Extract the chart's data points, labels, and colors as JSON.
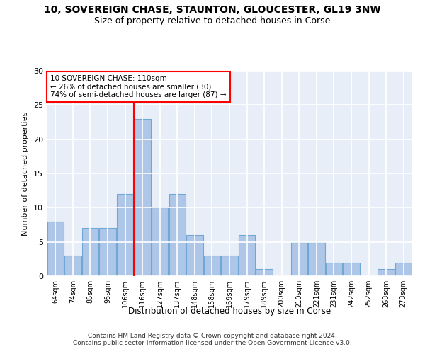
{
  "title1": "10, SOVEREIGN CHASE, STAUNTON, GLOUCESTER, GL19 3NW",
  "title2": "Size of property relative to detached houses in Corse",
  "xlabel": "Distribution of detached houses by size in Corse",
  "ylabel": "Number of detached properties",
  "categories": [
    "64sqm",
    "74sqm",
    "85sqm",
    "95sqm",
    "106sqm",
    "116sqm",
    "127sqm",
    "137sqm",
    "148sqm",
    "158sqm",
    "169sqm",
    "179sqm",
    "189sqm",
    "200sqm",
    "210sqm",
    "221sqm",
    "231sqm",
    "242sqm",
    "252sqm",
    "263sqm",
    "273sqm"
  ],
  "values": [
    8,
    3,
    7,
    7,
    12,
    23,
    10,
    12,
    6,
    3,
    3,
    6,
    1,
    0,
    5,
    5,
    2,
    2,
    0,
    1,
    2
  ],
  "bar_color": "#aec6e8",
  "bar_edge_color": "#6fa8d4",
  "vline_x": 4.5,
  "vline_color": "red",
  "annotation_text": "10 SOVEREIGN CHASE: 110sqm\n← 26% of detached houses are smaller (30)\n74% of semi-detached houses are larger (87) →",
  "annotation_box_color": "white",
  "annotation_box_edge": "red",
  "ylim": [
    0,
    30
  ],
  "yticks": [
    0,
    5,
    10,
    15,
    20,
    25,
    30
  ],
  "background_color": "#e8eef8",
  "footer1": "Contains HM Land Registry data © Crown copyright and database right 2024.",
  "footer2": "Contains public sector information licensed under the Open Government Licence v3.0."
}
